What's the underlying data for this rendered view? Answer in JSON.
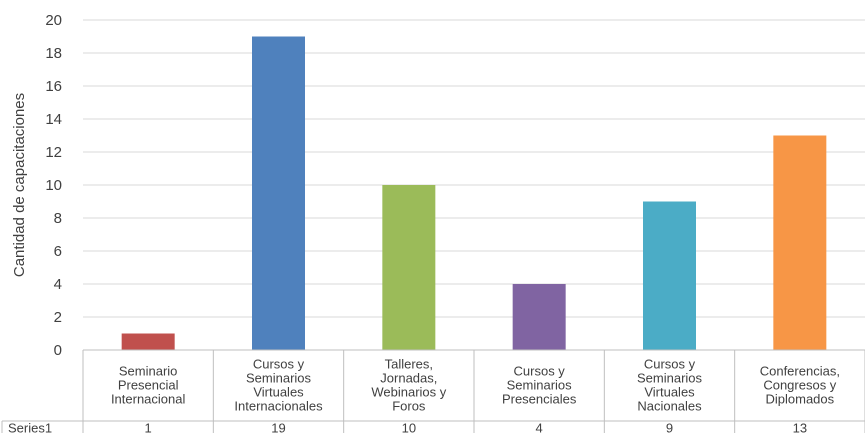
{
  "chart_data": {
    "type": "bar",
    "ylabel": "Cantidad de capacitaciones",
    "ylim": [
      0,
      20
    ],
    "yticks": [
      0,
      2,
      4,
      6,
      8,
      10,
      12,
      14,
      16,
      18,
      20
    ],
    "grid": true,
    "categories": [
      "Seminario Presencial Internacional",
      "Cursos y Seminarios Virtuales Internacionales",
      "Talleres, Jornadas, Webinarios y Foros",
      "Cursos y Seminarios Presenciales",
      "Cursos  y Seminarios Virtuales Nacionales",
      "Conferencias, Congresos y Diplomados"
    ],
    "category_lines": [
      [
        "Seminario",
        "Presencial",
        "Internacional"
      ],
      [
        "Cursos y",
        "Seminarios",
        "Virtuales",
        "Internacionales"
      ],
      [
        "Talleres,",
        "Jornadas,",
        "Webinarios y",
        "Foros"
      ],
      [
        "Cursos y",
        "Seminarios",
        "Presenciales"
      ],
      [
        "Cursos  y",
        "Seminarios",
        "Virtuales",
        "Nacionales"
      ],
      [
        "Conferencias,",
        "Congresos y",
        "Diplomados"
      ]
    ],
    "series": [
      {
        "name": "Series1",
        "values": [
          1,
          19,
          10,
          4,
          9,
          13
        ]
      }
    ],
    "bar_colors": [
      "#c0504d",
      "#4f81bd",
      "#9bbb59",
      "#8064a2",
      "#4bacc6",
      "#f79646"
    ],
    "data_table": true
  }
}
